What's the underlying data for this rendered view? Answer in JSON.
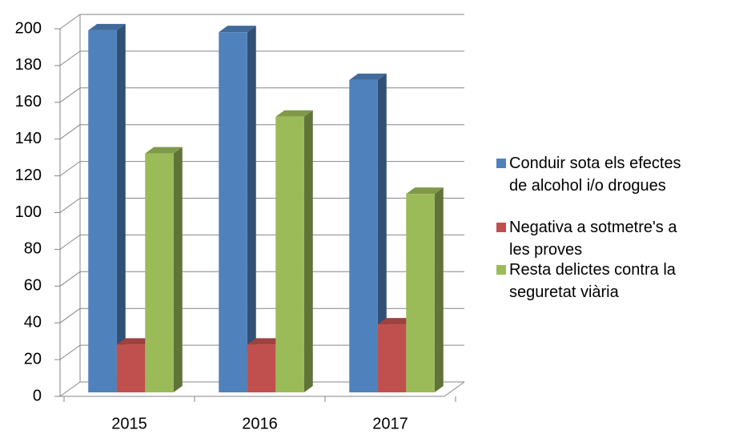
{
  "chart_data": {
    "type": "bar3d",
    "categories": [
      "2015",
      "2016",
      "2017"
    ],
    "series": [
      {
        "name": "Conduir sota els efectes de alcohol i/o drogues",
        "color": "#4f81bd",
        "values": [
          197,
          196,
          170
        ]
      },
      {
        "name": "Negativa a sotmetre's a les proves",
        "color": "#c0504d",
        "values": [
          26,
          26,
          37
        ]
      },
      {
        "name": "Resta delictes contra la seguretat viària",
        "color": "#9bbb59",
        "values": [
          130,
          150,
          108
        ]
      }
    ],
    "ylim": [
      0,
      200
    ],
    "yticks": [
      0,
      20,
      40,
      60,
      80,
      100,
      120,
      140,
      160,
      180,
      200
    ],
    "grid": true,
    "legend": "right"
  }
}
